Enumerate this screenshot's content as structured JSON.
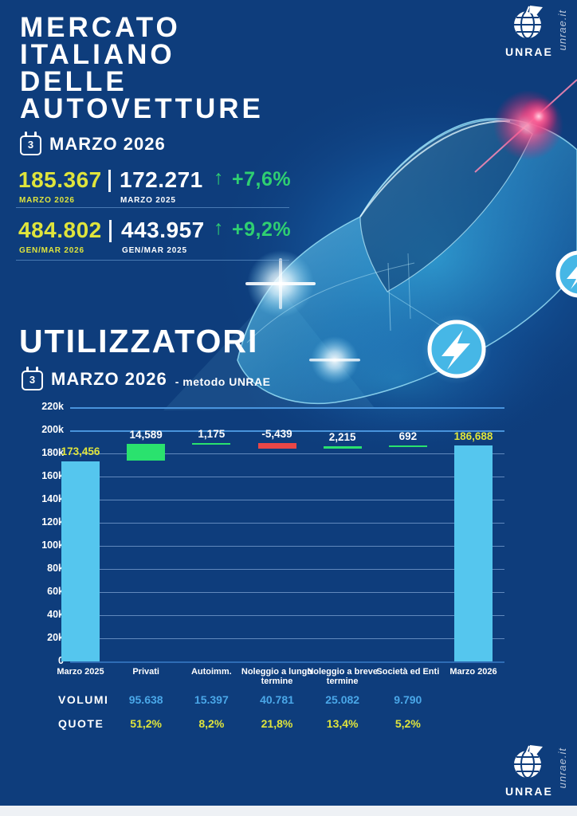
{
  "brand": {
    "name": "UNRAE",
    "website": "unrae.it"
  },
  "colors": {
    "background": "#0e3d7c",
    "accent_yellow": "#dfe43c",
    "accent_green": "#2fcf71",
    "bar_blue": "#55c6ee",
    "bar_green": "#2ae26e",
    "bar_red": "#e94747",
    "table_blue": "#4aa7e8"
  },
  "header": {
    "title_lines": [
      "MERCATO",
      "ITALIANO",
      "DELLE",
      "AUTOVETTURE"
    ],
    "calendar_day": "3",
    "date_label": "MARZO 2026"
  },
  "stats": [
    {
      "current_value": "185.367",
      "current_label": "MARZO 2026",
      "previous_value": "172.271",
      "previous_label": "MARZO 2025",
      "arrow": "↑",
      "change": "+7,6%"
    },
    {
      "current_value": "484.802",
      "current_label": "GEN/MAR 2026",
      "previous_value": "443.957",
      "previous_label": "GEN/MAR 2025",
      "arrow": "↑",
      "change": "+9,2%"
    }
  ],
  "section": {
    "title": "UTILIZZATORI",
    "calendar_day": "3",
    "date_label": "MARZO 2026",
    "method_label": "- metodo UNRAE"
  },
  "chart_data": {
    "type": "bar",
    "subtype": "waterfall",
    "title": "UTILIZZATORI MARZO 2026 - metodo UNRAE",
    "categories": [
      "Marzo 2025",
      "Privati",
      "Autoimm.",
      "Noleggio a lungo termine",
      "Noleggio a breve termine",
      "Società ed Enti",
      "Marzo 2026"
    ],
    "values": [
      173456,
      14589,
      1175,
      -5439,
      2215,
      692,
      186688
    ],
    "value_labels": [
      "173,456",
      "14,589",
      "1,175",
      "-5,439",
      "2,215",
      "692",
      "186,688"
    ],
    "bar_types": [
      "total",
      "increase",
      "increase",
      "decrease",
      "increase",
      "increase",
      "total"
    ],
    "ylim": [
      0,
      220000
    ],
    "ytick_step": 20000,
    "ytick_labels": [
      "0",
      "20k",
      "40k",
      "60k",
      "80k",
      "100k",
      "120k",
      "140k",
      "160k",
      "180k",
      "200k",
      "220k"
    ],
    "grid": true,
    "legend": false,
    "colors": {
      "total": "#55c6ee",
      "increase": "#2ae26e",
      "decrease": "#e94747"
    }
  },
  "table": {
    "rows": [
      {
        "label": "VOLUMI",
        "values": [
          "95.638",
          "15.397",
          "40.781",
          "25.082",
          "9.790"
        ]
      },
      {
        "label": "QUOTE",
        "values": [
          "51,2%",
          "8,2%",
          "21,8%",
          "13,4%",
          "5,2%"
        ]
      }
    ]
  }
}
